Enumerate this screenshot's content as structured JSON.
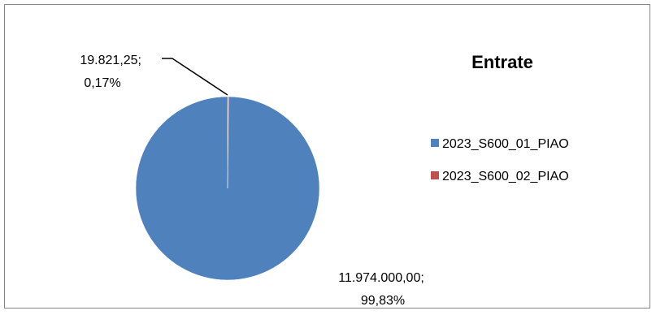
{
  "chart_data": {
    "type": "pie",
    "title": "Entrate",
    "categories": [
      "2023_S600_01_PIAO",
      "2023_S600_02_PIAO"
    ],
    "values": [
      11974000.0,
      19821.25
    ],
    "value_labels": [
      "11.974.000,00;",
      "19.821,25;"
    ],
    "percent_labels": [
      "99,83%",
      "0,17%"
    ],
    "colors": [
      "#4f81bd",
      "#c0504d"
    ],
    "legend_position": "right"
  }
}
